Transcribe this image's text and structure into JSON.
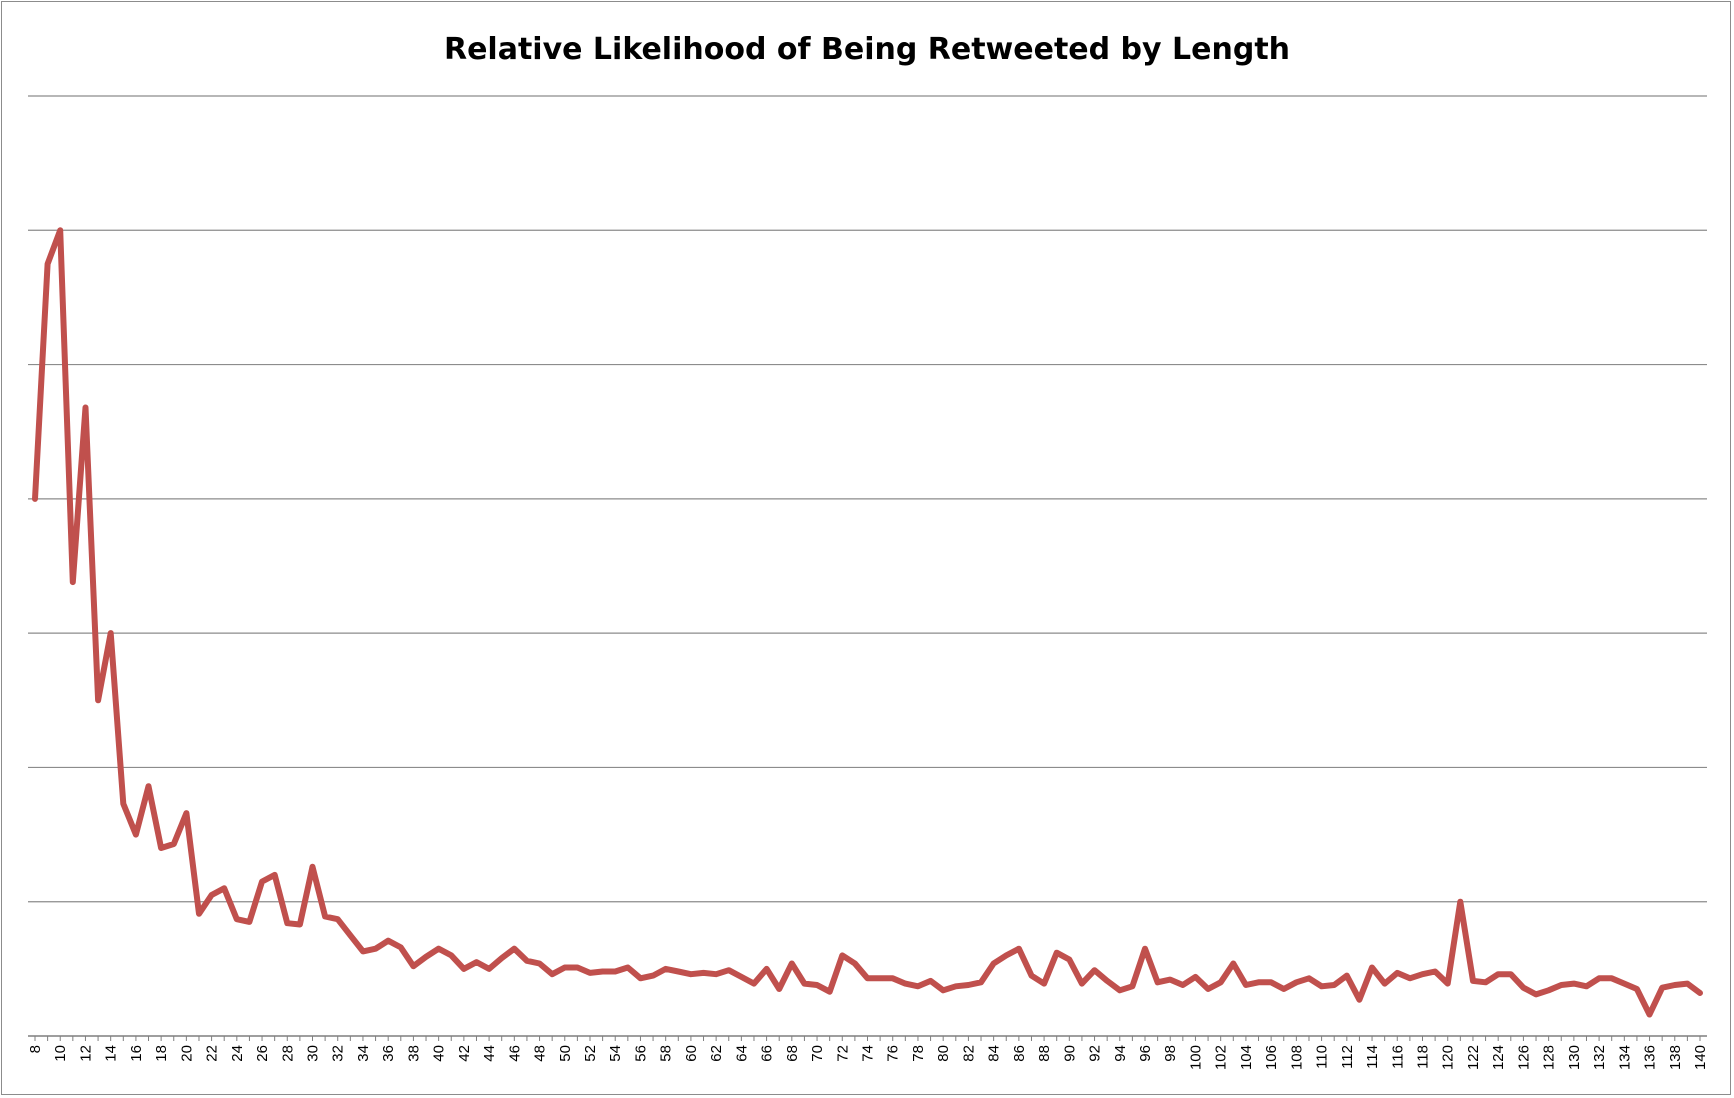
{
  "chart_data": {
    "type": "line",
    "title": "Relative Likelihood of Being Retweeted by Length",
    "xlabel": "",
    "ylabel": "",
    "ylim": [
      0,
      7
    ],
    "grid": true,
    "legend": "none",
    "y_tick_labels_shown": false,
    "x_tick_labels": [
      "8",
      "10",
      "12",
      "14",
      "16",
      "18",
      "20",
      "22",
      "24",
      "26",
      "28",
      "30",
      "32",
      "34",
      "36",
      "38",
      "40",
      "42",
      "44",
      "46",
      "48",
      "50",
      "52",
      "54",
      "56",
      "58",
      "60",
      "62",
      "64",
      "66",
      "68",
      "70",
      "72",
      "74",
      "76",
      "78",
      "80",
      "82",
      "84",
      "86",
      "88",
      "90",
      "92",
      "94",
      "96",
      "98",
      "100",
      "102",
      "104",
      "106",
      "108",
      "110",
      "112",
      "114",
      "116",
      "118",
      "120",
      "122",
      "124",
      "126",
      "128",
      "130",
      "132",
      "134",
      "136",
      "138",
      "140"
    ],
    "x": [
      8,
      9,
      10,
      11,
      12,
      13,
      14,
      15,
      16,
      17,
      18,
      19,
      20,
      21,
      22,
      23,
      24,
      25,
      26,
      27,
      28,
      29,
      30,
      31,
      32,
      33,
      34,
      35,
      36,
      37,
      38,
      39,
      40,
      41,
      42,
      43,
      44,
      45,
      46,
      47,
      48,
      49,
      50,
      51,
      52,
      53,
      54,
      55,
      56,
      57,
      58,
      59,
      60,
      61,
      62,
      63,
      64,
      65,
      66,
      67,
      68,
      69,
      70,
      71,
      72,
      73,
      74,
      75,
      76,
      77,
      78,
      79,
      80,
      81,
      82,
      83,
      84,
      85,
      86,
      87,
      88,
      89,
      90,
      91,
      92,
      93,
      94,
      95,
      96,
      97,
      98,
      99,
      100,
      101,
      102,
      103,
      104,
      105,
      106,
      107,
      108,
      109,
      110,
      111,
      112,
      113,
      114,
      115,
      116,
      117,
      118,
      119,
      120,
      121,
      122,
      123,
      124,
      125,
      126,
      127,
      128,
      129,
      130,
      131,
      132,
      133,
      134,
      135,
      136,
      137,
      138,
      139,
      140
    ],
    "series": [
      {
        "color": "#c0504d",
        "values": [
          4.0,
          5.75,
          6.0,
          3.38,
          4.68,
          2.5,
          3.0,
          1.73,
          1.5,
          1.86,
          1.4,
          1.43,
          1.66,
          0.91,
          1.05,
          1.1,
          0.87,
          0.85,
          1.15,
          1.2,
          0.84,
          0.83,
          1.26,
          0.89,
          0.87,
          0.75,
          0.63,
          0.65,
          0.71,
          0.66,
          0.52,
          0.59,
          0.65,
          0.6,
          0.5,
          0.55,
          0.5,
          0.58,
          0.65,
          0.56,
          0.54,
          0.46,
          0.51,
          0.51,
          0.47,
          0.48,
          0.48,
          0.51,
          0.43,
          0.45,
          0.5,
          0.48,
          0.46,
          0.47,
          0.46,
          0.49,
          0.44,
          0.39,
          0.5,
          0.35,
          0.54,
          0.39,
          0.38,
          0.33,
          0.6,
          0.54,
          0.43,
          0.43,
          0.43,
          0.39,
          0.37,
          0.41,
          0.34,
          0.37,
          0.38,
          0.4,
          0.54,
          0.6,
          0.65,
          0.45,
          0.39,
          0.62,
          0.57,
          0.39,
          0.49,
          0.41,
          0.34,
          0.37,
          0.65,
          0.4,
          0.42,
          0.38,
          0.44,
          0.35,
          0.4,
          0.54,
          0.38,
          0.4,
          0.4,
          0.35,
          0.4,
          0.43,
          0.37,
          0.38,
          0.45,
          0.27,
          0.51,
          0.39,
          0.47,
          0.43,
          0.46,
          0.48,
          0.39,
          1.0,
          0.41,
          0.4,
          0.46,
          0.46,
          0.36,
          0.31,
          0.34,
          0.38,
          0.39,
          0.37,
          0.43,
          0.43,
          0.39,
          0.35,
          0.16,
          0.36,
          0.38,
          0.39,
          0.32
        ]
      }
    ]
  }
}
